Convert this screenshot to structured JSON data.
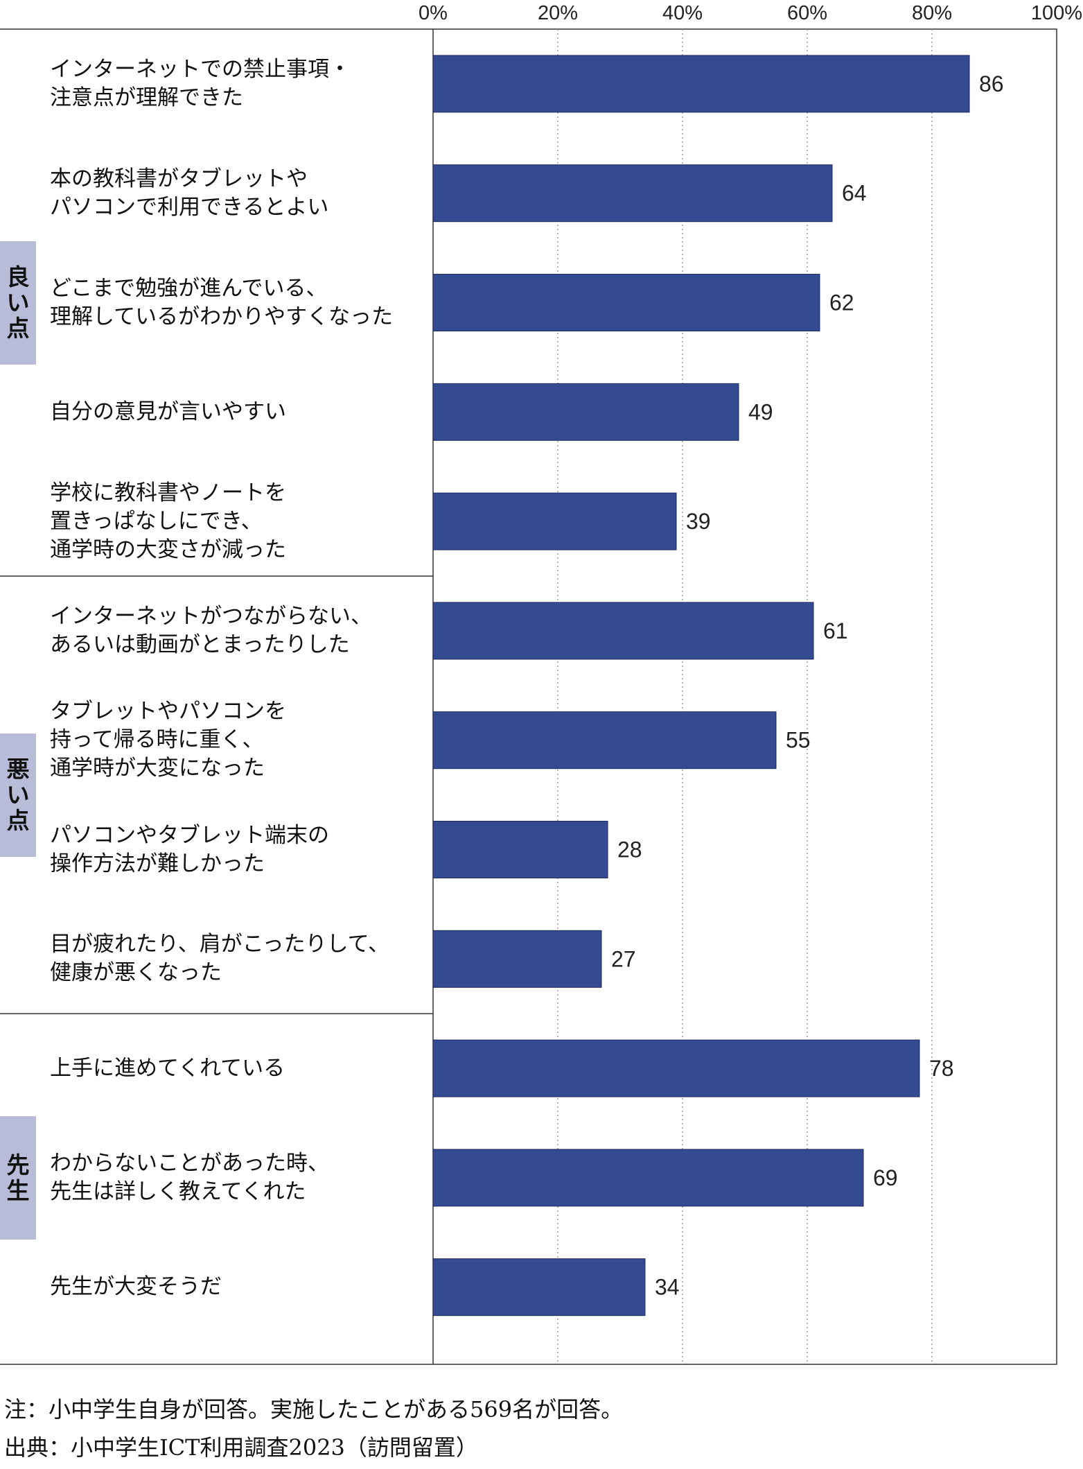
{
  "chart_data": {
    "type": "bar",
    "orientation": "horizontal",
    "xlim": [
      0,
      100
    ],
    "xticks": [
      "0%",
      "20%",
      "40%",
      "60%",
      "80%",
      "100%"
    ],
    "grid": "vertical dotted",
    "bar_color": "#344a91",
    "groups": [
      {
        "label": "良い点",
        "items": [
          {
            "label": "インターネットでの禁止事項・\n注意点が理解できた",
            "value": 86
          },
          {
            "label": "本の教科書がタブレットや\nパソコンで利用できるとよい",
            "value": 64
          },
          {
            "label": "どこまで勉強が進んでいる、\n理解しているがわかりやすくなった",
            "value": 62
          },
          {
            "label": "自分の意見が言いやすい",
            "value": 49
          },
          {
            "label": "学校に教科書やノートを\n置きっぱなしにでき、\n通学時の大変さが減った",
            "value": 39
          }
        ]
      },
      {
        "label": "悪い点",
        "items": [
          {
            "label": "インターネットがつながらない、\nあるいは動画がとまったりした",
            "value": 61
          },
          {
            "label": "タブレットやパソコンを\n持って帰る時に重く、\n通学時が大変になった",
            "value": 55
          },
          {
            "label": "パソコンやタブレット端末の\n操作方法が難しかった",
            "value": 28
          },
          {
            "label": "目が疲れたり、肩がこったりして、\n健康が悪くなった",
            "value": 27
          }
        ]
      },
      {
        "label": "先生",
        "items": [
          {
            "label": "上手に進めてくれている",
            "value": 78
          },
          {
            "label": "わからないことがあった時、\n先生は詳しく教えてくれた",
            "value": 69
          },
          {
            "label": "先生が大変そうだ",
            "value": 34
          }
        ]
      }
    ]
  },
  "notes": {
    "note": "注：小中学生自身が回答。実施したことがある569名が回答。",
    "source": "出典：小中学生ICT利用調査2023（訪問留置）"
  }
}
